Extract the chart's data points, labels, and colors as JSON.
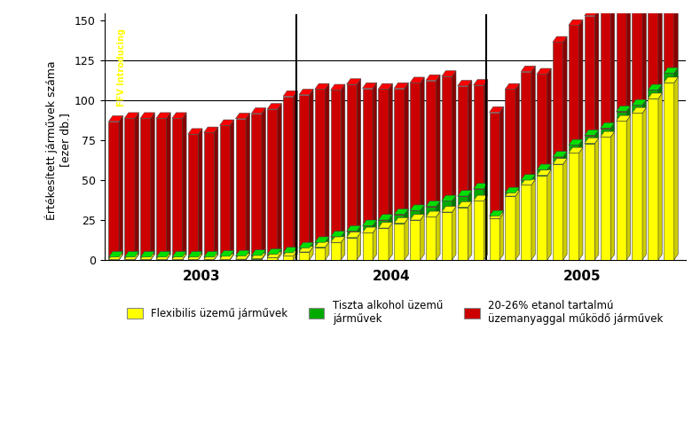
{
  "title_y": "Értékesített járművek száma\n[ezer db.]",
  "ylabel_fontsize": 9,
  "annotation_text": "FFV Introducing",
  "annotation_color": "#FFFF00",
  "legend_labels": [
    "Flexibilis üzemű járművek",
    "Tiszta alkohol üzemű\njárművek",
    "20-26% etanol tartalmú\nüzemanyaggal működő járművek"
  ],
  "ylim": [
    0,
    150
  ],
  "yticks": [
    0,
    25,
    50,
    75,
    100,
    125,
    150
  ],
  "hlines": [
    100,
    125
  ],
  "year_labels": [
    "2003",
    "2004",
    "2005"
  ],
  "year_dividers_after_bar": [
    11,
    23
  ],
  "months": 36,
  "ffv": [
    0.3,
    0.3,
    0.3,
    0.3,
    0.3,
    0.3,
    0.3,
    0.3,
    0.5,
    0.8,
    1.5,
    2.5,
    5.0,
    8.0,
    11.0,
    14.0,
    17.0,
    20.0,
    23.0,
    25.0,
    27.0,
    30.0,
    33.0,
    37.0,
    26.0,
    40.0,
    47.0,
    53.0,
    60.0,
    67.0,
    73.0,
    77.0,
    87.0,
    92.0,
    101.0,
    111.0
  ],
  "pure": [
    1.5,
    1.5,
    1.5,
    1.5,
    1.5,
    1.5,
    1.5,
    2.0,
    2.0,
    2.0,
    2.0,
    2.0,
    2.5,
    3.0,
    3.5,
    4.0,
    4.5,
    5.0,
    5.5,
    6.0,
    6.5,
    7.0,
    7.0,
    7.5,
    1.5,
    2.0,
    3.0,
    3.5,
    4.5,
    5.0,
    5.0,
    5.5,
    6.0,
    5.0,
    5.5,
    6.0
  ],
  "blend": [
    85,
    87,
    87,
    87,
    87,
    77,
    78,
    82,
    86,
    89,
    91,
    98,
    96,
    96,
    92,
    92,
    86,
    82,
    79,
    80,
    79,
    78,
    69,
    65,
    65,
    65,
    68,
    60,
    72,
    75,
    75,
    79,
    80,
    81,
    94,
    102
  ],
  "background_color": "#FFFFFF",
  "bar_color_ffv": "#FFFF00",
  "bar_color_pure": "#00AA00",
  "bar_color_blend": "#CC0000",
  "shadow_color_ffv": "#CCCC00",
  "shadow_color_pure": "#007700",
  "shadow_color_blend": "#880000"
}
